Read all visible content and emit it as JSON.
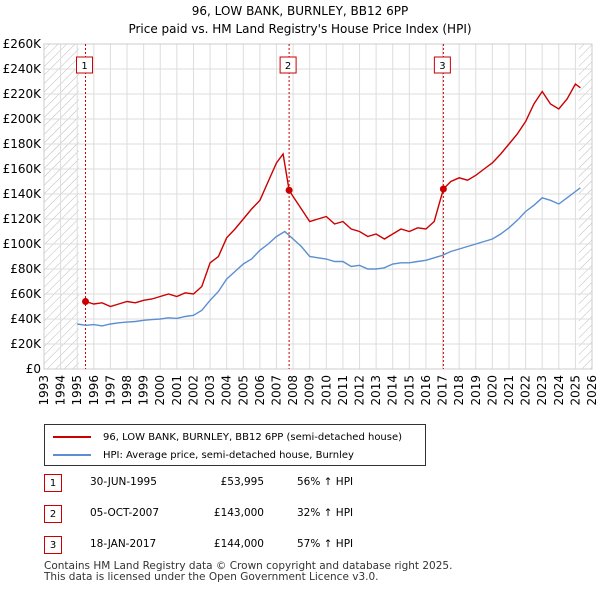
{
  "chart_data": {
    "type": "line",
    "title": "96, LOW BANK, BURNLEY, BB12 6PP",
    "subtitle": "Price paid vs. HM Land Registry's House Price Index (HPI)",
    "xlim": [
      1993,
      2026
    ],
    "ylim": [
      0,
      260000
    ],
    "x_ticks": [
      1993,
      1994,
      1995,
      1996,
      1997,
      1998,
      1999,
      2000,
      2001,
      2002,
      2003,
      2004,
      2005,
      2006,
      2007,
      2008,
      2009,
      2010,
      2011,
      2012,
      2013,
      2014,
      2015,
      2016,
      2017,
      2018,
      2019,
      2020,
      2021,
      2022,
      2023,
      2024,
      2025,
      2026
    ],
    "y_ticks": [
      0,
      20000,
      40000,
      60000,
      80000,
      100000,
      120000,
      140000,
      160000,
      180000,
      200000,
      220000,
      240000,
      260000
    ],
    "y_tick_labels": [
      "£0",
      "£20K",
      "£40K",
      "£60K",
      "£80K",
      "£100K",
      "£120K",
      "£140K",
      "£160K",
      "£180K",
      "£200K",
      "£220K",
      "£240K",
      "£260K"
    ],
    "hatched_ranges": [
      [
        1993,
        1995.1
      ],
      [
        2025.2,
        2026
      ]
    ],
    "grid": true,
    "series": [
      {
        "name": "96, LOW BANK, BURNLEY, BB12 6PP (semi-detached house)",
        "color": "#cc0000",
        "points": [
          [
            1995.5,
            54000
          ],
          [
            1996,
            52000
          ],
          [
            1996.5,
            53000
          ],
          [
            1997,
            50000
          ],
          [
            1997.5,
            52000
          ],
          [
            1998,
            54000
          ],
          [
            1998.5,
            53000
          ],
          [
            1999,
            55000
          ],
          [
            1999.5,
            56000
          ],
          [
            2000,
            58000
          ],
          [
            2000.5,
            60000
          ],
          [
            2001,
            58000
          ],
          [
            2001.5,
            61000
          ],
          [
            2002,
            60000
          ],
          [
            2002.5,
            66000
          ],
          [
            2003,
            85000
          ],
          [
            2003.5,
            90000
          ],
          [
            2004,
            105000
          ],
          [
            2004.5,
            112000
          ],
          [
            2005,
            120000
          ],
          [
            2005.5,
            128000
          ],
          [
            2006,
            135000
          ],
          [
            2006.5,
            150000
          ],
          [
            2007,
            165000
          ],
          [
            2007.4,
            172000
          ],
          [
            2007.76,
            143000
          ],
          [
            2008,
            138000
          ],
          [
            2008.5,
            128000
          ],
          [
            2009,
            118000
          ],
          [
            2009.5,
            120000
          ],
          [
            2010,
            122000
          ],
          [
            2010.5,
            116000
          ],
          [
            2011,
            118000
          ],
          [
            2011.5,
            112000
          ],
          [
            2012,
            110000
          ],
          [
            2012.5,
            106000
          ],
          [
            2013,
            108000
          ],
          [
            2013.5,
            104000
          ],
          [
            2014,
            108000
          ],
          [
            2014.5,
            112000
          ],
          [
            2015,
            110000
          ],
          [
            2015.5,
            113000
          ],
          [
            2016,
            112000
          ],
          [
            2016.5,
            118000
          ],
          [
            2017.05,
            144000
          ],
          [
            2017.5,
            150000
          ],
          [
            2018,
            153000
          ],
          [
            2018.5,
            151000
          ],
          [
            2019,
            155000
          ],
          [
            2019.5,
            160000
          ],
          [
            2020,
            165000
          ],
          [
            2020.5,
            172000
          ],
          [
            2021,
            180000
          ],
          [
            2021.5,
            188000
          ],
          [
            2022,
            198000
          ],
          [
            2022.5,
            212000
          ],
          [
            2023,
            222000
          ],
          [
            2023.5,
            212000
          ],
          [
            2024,
            208000
          ],
          [
            2024.5,
            216000
          ],
          [
            2025,
            228000
          ],
          [
            2025.3,
            225000
          ]
        ]
      },
      {
        "name": "HPI: Average price, semi-detached house, Burnley",
        "color": "#5b8fd1",
        "points": [
          [
            1995,
            36000
          ],
          [
            1995.5,
            35000
          ],
          [
            1996,
            35500
          ],
          [
            1996.5,
            34500
          ],
          [
            1997,
            36000
          ],
          [
            1997.5,
            37000
          ],
          [
            1998,
            37500
          ],
          [
            1998.5,
            38000
          ],
          [
            1999,
            39000
          ],
          [
            1999.5,
            39500
          ],
          [
            2000,
            40000
          ],
          [
            2000.5,
            41000
          ],
          [
            2001,
            40500
          ],
          [
            2001.5,
            42000
          ],
          [
            2002,
            43000
          ],
          [
            2002.5,
            47000
          ],
          [
            2003,
            55000
          ],
          [
            2003.5,
            62000
          ],
          [
            2004,
            72000
          ],
          [
            2004.5,
            78000
          ],
          [
            2005,
            84000
          ],
          [
            2005.5,
            88000
          ],
          [
            2006,
            95000
          ],
          [
            2006.5,
            100000
          ],
          [
            2007,
            106000
          ],
          [
            2007.5,
            110000
          ],
          [
            2008,
            104000
          ],
          [
            2008.5,
            98000
          ],
          [
            2009,
            90000
          ],
          [
            2009.5,
            89000
          ],
          [
            2010,
            88000
          ],
          [
            2010.5,
            86000
          ],
          [
            2011,
            86000
          ],
          [
            2011.5,
            82000
          ],
          [
            2012,
            83000
          ],
          [
            2012.5,
            80000
          ],
          [
            2013,
            80000
          ],
          [
            2013.5,
            81000
          ],
          [
            2014,
            84000
          ],
          [
            2014.5,
            85000
          ],
          [
            2015,
            85000
          ],
          [
            2015.5,
            86000
          ],
          [
            2016,
            87000
          ],
          [
            2016.5,
            89000
          ],
          [
            2017,
            91000
          ],
          [
            2017.5,
            94000
          ],
          [
            2018,
            96000
          ],
          [
            2018.5,
            98000
          ],
          [
            2019,
            100000
          ],
          [
            2019.5,
            102000
          ],
          [
            2020,
            104000
          ],
          [
            2020.5,
            108000
          ],
          [
            2021,
            113000
          ],
          [
            2021.5,
            119000
          ],
          [
            2022,
            126000
          ],
          [
            2022.5,
            131000
          ],
          [
            2023,
            137000
          ],
          [
            2023.5,
            135000
          ],
          [
            2024,
            132000
          ],
          [
            2024.5,
            137000
          ],
          [
            2025,
            142000
          ],
          [
            2025.3,
            145000
          ]
        ]
      }
    ],
    "sale_markers": [
      {
        "label": "1",
        "x": 1995.5,
        "y": 53995
      },
      {
        "label": "2",
        "x": 2007.76,
        "y": 143000
      },
      {
        "label": "3",
        "x": 2017.05,
        "y": 144000
      }
    ]
  },
  "legend": {
    "property_label": "96, LOW BANK, BURNLEY, BB12 6PP (semi-detached house)",
    "hpi_label": "HPI: Average price, semi-detached house, Burnley",
    "property_color": "#cc0000",
    "hpi_color": "#5b8fd1"
  },
  "sales": [
    {
      "num": "1",
      "date": "30-JUN-1995",
      "price": "£53,995",
      "hpi": "56% ↑ HPI"
    },
    {
      "num": "2",
      "date": "05-OCT-2007",
      "price": "£143,000",
      "hpi": "32% ↑ HPI"
    },
    {
      "num": "3",
      "date": "18-JAN-2017",
      "price": "£144,000",
      "hpi": "57% ↑ HPI"
    }
  ],
  "footer": {
    "line1": "Contains HM Land Registry data © Crown copyright and database right 2025.",
    "line2": "This data is licensed under the Open Government Licence v3.0."
  }
}
